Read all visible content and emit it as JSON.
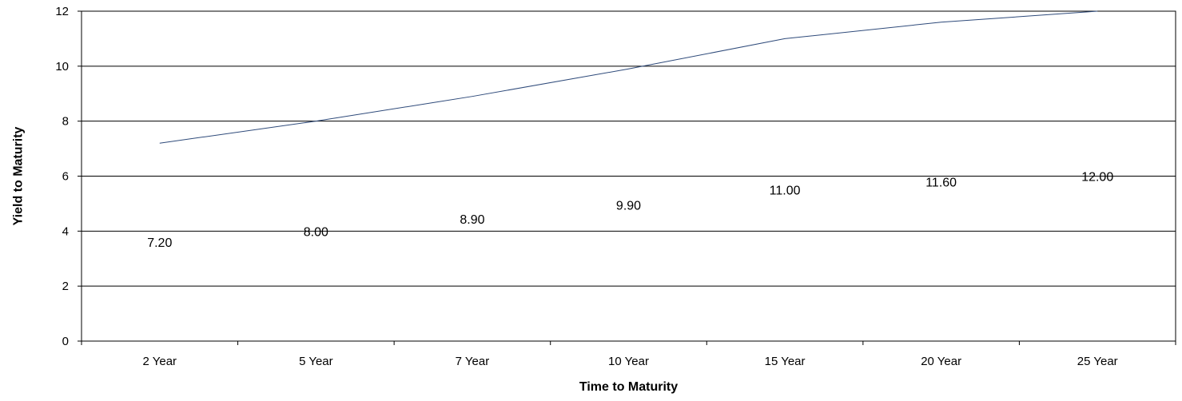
{
  "chart_data": {
    "type": "line",
    "title": "",
    "xlabel": "Time to Maturity",
    "ylabel": "Yield to Maturity",
    "categories": [
      "2 Year",
      "5 Year",
      "7 Year",
      "10 Year",
      "15 Year",
      "20 Year",
      "25 Year"
    ],
    "series": [
      {
        "values": [
          7.2,
          8.0,
          8.9,
          9.9,
          11.0,
          11.6,
          12.0
        ]
      }
    ],
    "data_labels": [
      "7.20",
      "8.00",
      "8.90",
      "9.90",
      "11.00",
      "11.60",
      "12.00"
    ],
    "y_ticks": [
      "0",
      "2",
      "4",
      "6",
      "8",
      "10",
      "12"
    ],
    "ylim": [
      0,
      12
    ],
    "grid": true,
    "legend": "none",
    "colors": {
      "line": "#2e4a7a",
      "grid": "#000000"
    }
  }
}
